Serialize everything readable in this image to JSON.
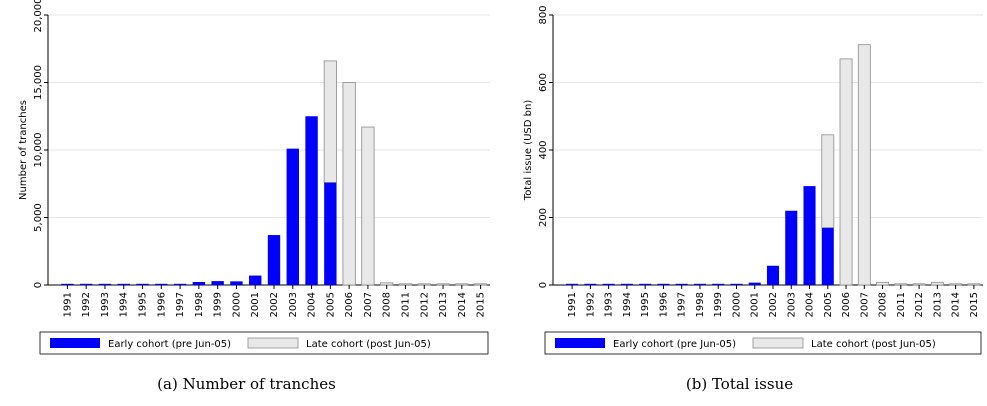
{
  "captions": [
    "(a) Number of tranches",
    "(b) Total issue"
  ],
  "colors": {
    "early": "#0000ff",
    "late": "#e8e8e8",
    "late_stroke": "#8c8c8c",
    "grid": "#e6e6e6"
  },
  "chart_data": [
    {
      "type": "bar",
      "stacked": true,
      "categories": [
        "1991",
        "1992",
        "1993",
        "1994",
        "1995",
        "1996",
        "1997",
        "1998",
        "1999",
        "2000",
        "2001",
        "2002",
        "2003",
        "2004",
        "2005",
        "2006",
        "2007",
        "2008",
        "2011",
        "2012",
        "2013",
        "2014",
        "2015"
      ],
      "series": [
        {
          "name": "Early cohort (pre Jun-05)",
          "values": [
            20,
            20,
            20,
            20,
            20,
            20,
            20,
            220,
            290,
            270,
            700,
            3700,
            10100,
            12500,
            7600,
            0,
            0,
            0,
            0,
            0,
            0,
            0,
            0
          ]
        },
        {
          "name": "Late cohort (post Jun-05)",
          "values": [
            0,
            0,
            0,
            0,
            0,
            0,
            0,
            0,
            0,
            0,
            0,
            0,
            0,
            0,
            9000,
            15000,
            11700,
            160,
            30,
            20,
            60,
            10,
            10
          ]
        }
      ],
      "ylabel": "Number of tranches",
      "ylim": [
        0,
        20000
      ],
      "yticks": [
        0,
        5000,
        10000,
        15000,
        20000
      ],
      "ytick_labels": [
        "0",
        "5,000",
        "10,000",
        "15,000",
        "20,000"
      ],
      "legend_placement": "bottom",
      "grid": true
    },
    {
      "type": "bar",
      "stacked": true,
      "categories": [
        "1991",
        "1992",
        "1993",
        "1994",
        "1995",
        "1996",
        "1997",
        "1998",
        "1999",
        "2000",
        "2001",
        "2002",
        "2003",
        "2004",
        "2005",
        "2006",
        "2007",
        "2008",
        "2011",
        "2012",
        "2013",
        "2014",
        "2015"
      ],
      "series": [
        {
          "name": "Early cohort (pre Jun-05)",
          "values": [
            1,
            1,
            1,
            1,
            1,
            1,
            1,
            2,
            2,
            3,
            7,
            57,
            220,
            293,
            170,
            0,
            0,
            0,
            0,
            0,
            0,
            0,
            0
          ]
        },
        {
          "name": "Late cohort (post Jun-05)",
          "values": [
            0,
            0,
            0,
            0,
            0,
            0,
            0,
            0,
            0,
            0,
            0,
            0,
            0,
            0,
            275,
            670,
            712,
            8,
            1,
            1,
            8,
            1,
            1
          ]
        }
      ],
      "ylabel": "Total issue (USD bn)",
      "ylim": [
        0,
        800
      ],
      "yticks": [
        0,
        200,
        400,
        600,
        800
      ],
      "ytick_labels": [
        "0",
        "200",
        "400",
        "600",
        "800"
      ],
      "legend_placement": "bottom",
      "grid": true
    }
  ]
}
